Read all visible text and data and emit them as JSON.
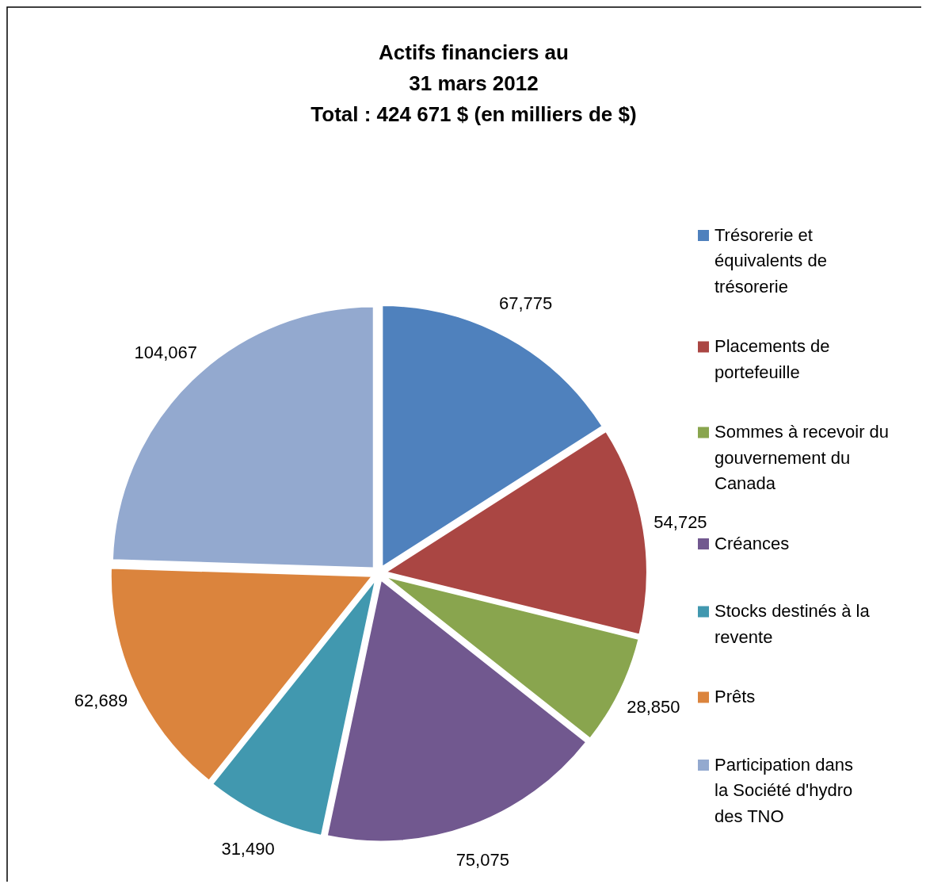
{
  "chart_data": {
    "type": "pie",
    "title": "Actifs financiers au\n31 mars 2012\nTotal : 424 671 $ (en milliers de $)",
    "categories": [
      "Trésorerie et équivalents de trésorerie",
      "Placements de portefeuille",
      "Sommes à recevoir du gouvernement du Canada",
      "Créances",
      "Stocks destinés à la revente",
      "Prêts",
      "Participation dans la Société d'hydro des TNO"
    ],
    "values": [
      67775,
      54725,
      28850,
      75075,
      31490,
      62689,
      104067
    ],
    "value_labels": [
      "67,775",
      "54,725",
      "28,850",
      "75,075",
      "31,490",
      "62,689",
      "104,067"
    ],
    "colors": [
      "#4f81bd",
      "#aa4643",
      "#89a54e",
      "#71588f",
      "#4198af",
      "#db843d",
      "#93a9cf"
    ],
    "legend": "right"
  }
}
